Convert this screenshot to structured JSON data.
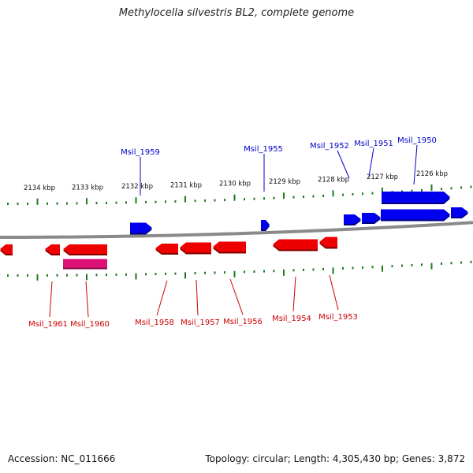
{
  "title": "Methylocella silvestris BL2, complete genome",
  "footer": {
    "accession": "Accession: NC_011666",
    "summary": "Topology: circular; Length: 4,305,430 bp; Genes: 3,872"
  },
  "colors": {
    "forward_gene": "#0000ee",
    "reverse_gene": "#ee0000",
    "rna_feature": "#dd1177",
    "backbone": "#8a8a8a",
    "tick": "#1e7a1e",
    "forward_label": "#0000cc",
    "reverse_label": "#cc0000"
  },
  "scale_labels": [
    "2134 kbp",
    "2133 kbp",
    "2132 kbp",
    "2131 kbp",
    "2130 kbp",
    "2129 kbp",
    "2128 kbp",
    "2127 kbp",
    "2126 kbp"
  ],
  "forward_genes": [
    {
      "id": "Msil_1959",
      "labeled": true
    },
    {
      "id": "Msil_1955",
      "labeled": true
    },
    {
      "id": "Msil_1952",
      "labeled": true
    },
    {
      "id": "Msil_1951",
      "labeled": true
    },
    {
      "id": "Msil_1950",
      "labeled": true
    },
    {
      "id": "",
      "labeled": false
    },
    {
      "id": "",
      "labeled": false
    }
  ],
  "reverse_genes": [
    {
      "id": "Msil_1961",
      "labeled": true
    },
    {
      "id": "Msil_1960",
      "labeled": true
    },
    {
      "id": "Msil_1958",
      "labeled": true
    },
    {
      "id": "Msil_1957",
      "labeled": true
    },
    {
      "id": "Msil_1956",
      "labeled": true
    },
    {
      "id": "Msil_1954",
      "labeled": true
    },
    {
      "id": "Msil_1953",
      "labeled": true
    },
    {
      "id": "",
      "labeled": false
    }
  ],
  "rna_features": [
    {
      "id": "",
      "labeled": false
    }
  ]
}
